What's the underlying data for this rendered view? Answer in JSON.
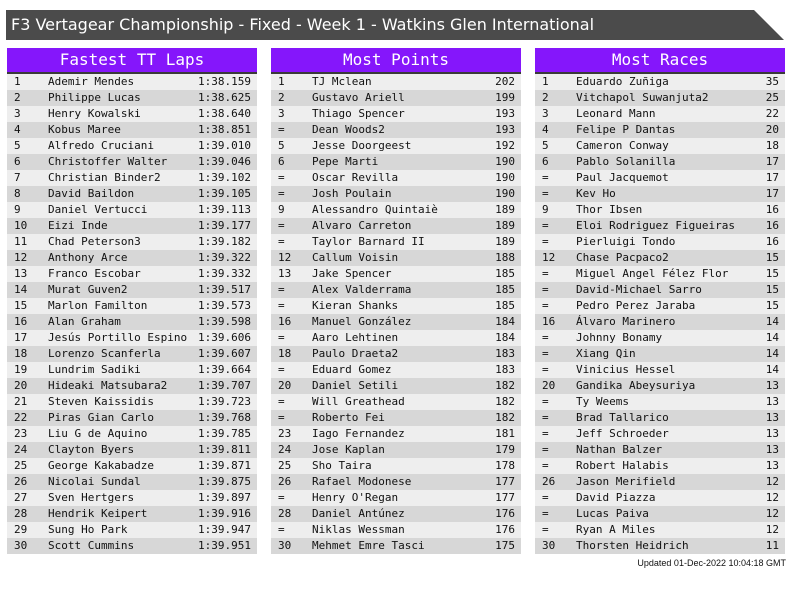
{
  "title": "F3 Vertagear Championship - Fixed - Week 1 - Watkins Glen International",
  "colors": {
    "header": "#8516fb",
    "titlebar": "#4b4b4b",
    "row_light": "#eeeeee",
    "row_dark": "#d7d7d7"
  },
  "panels": [
    {
      "title": "Fastest TT Laps",
      "rows": [
        [
          "1",
          "Ademir Mendes",
          "1:38.159"
        ],
        [
          "2",
          "Philippe Lucas",
          "1:38.625"
        ],
        [
          "3",
          "Henry Kowalski",
          "1:38.640"
        ],
        [
          "4",
          "Kobus Maree",
          "1:38.851"
        ],
        [
          "5",
          "Alfredo Cruciani",
          "1:39.010"
        ],
        [
          "6",
          "Christoffer Walter",
          "1:39.046"
        ],
        [
          "7",
          "Christian Binder2",
          "1:39.102"
        ],
        [
          "8",
          "David Baildon",
          "1:39.105"
        ],
        [
          "9",
          "Daniel Vertucci",
          "1:39.113"
        ],
        [
          "10",
          "Eizi Inde",
          "1:39.177"
        ],
        [
          "11",
          "Chad Peterson3",
          "1:39.182"
        ],
        [
          "12",
          "Anthony Arce",
          "1:39.322"
        ],
        [
          "13",
          "Franco Escobar",
          "1:39.332"
        ],
        [
          "14",
          "Murat Guven2",
          "1:39.517"
        ],
        [
          "15",
          "Marlon Familton",
          "1:39.573"
        ],
        [
          "16",
          "Alan Graham",
          "1:39.598"
        ],
        [
          "17",
          "Jesús Portillo Espino",
          "1:39.606"
        ],
        [
          "18",
          "Lorenzo Scanferla",
          "1:39.607"
        ],
        [
          "19",
          "Lundrim Sadiki",
          "1:39.664"
        ],
        [
          "20",
          "Hideaki Matsubara2",
          "1:39.707"
        ],
        [
          "21",
          "Steven Kaissidis",
          "1:39.723"
        ],
        [
          "22",
          "Piras Gian Carlo",
          "1:39.768"
        ],
        [
          "23",
          "Liu G de Aquino",
          "1:39.785"
        ],
        [
          "24",
          "Clayton Byers",
          "1:39.811"
        ],
        [
          "25",
          "George Kakabadze",
          "1:39.871"
        ],
        [
          "26",
          "Nicolai Sundal",
          "1:39.875"
        ],
        [
          "27",
          "Sven Hertgers",
          "1:39.897"
        ],
        [
          "28",
          "Hendrik Keipert",
          "1:39.916"
        ],
        [
          "29",
          "Sung Ho Park",
          "1:39.947"
        ],
        [
          "30",
          "Scott Cummins",
          "1:39.951"
        ]
      ]
    },
    {
      "title": "Most Points",
      "rows": [
        [
          "1",
          "TJ Mclean",
          "202"
        ],
        [
          "2",
          "Gustavo Ariell",
          "199"
        ],
        [
          "3",
          "Thiago Spencer",
          "193"
        ],
        [
          "=",
          "Dean Woods2",
          "193"
        ],
        [
          "5",
          "Jesse Doorgeest",
          "192"
        ],
        [
          "6",
          "Pepe Marti",
          "190"
        ],
        [
          "=",
          "Oscar Revilla",
          "190"
        ],
        [
          "=",
          "Josh Poulain",
          "190"
        ],
        [
          "9",
          "Alessandro Quintaiè",
          "189"
        ],
        [
          "=",
          "Alvaro Carreton",
          "189"
        ],
        [
          "=",
          "Taylor Barnard II",
          "189"
        ],
        [
          "12",
          "Callum Voisin",
          "188"
        ],
        [
          "13",
          "Jake Spencer",
          "185"
        ],
        [
          "=",
          "Alex Valderrama",
          "185"
        ],
        [
          "=",
          "Kieran Shanks",
          "185"
        ],
        [
          "16",
          "Manuel González",
          "184"
        ],
        [
          "=",
          "Aaro Lehtinen",
          "184"
        ],
        [
          "18",
          "Paulo Draeta2",
          "183"
        ],
        [
          "=",
          "Eduard Gomez",
          "183"
        ],
        [
          "20",
          "Daniel Setili",
          "182"
        ],
        [
          "=",
          "Will Greathead",
          "182"
        ],
        [
          "=",
          "Roberto Fei",
          "182"
        ],
        [
          "23",
          "Iago Fernandez",
          "181"
        ],
        [
          "24",
          "Jose Kaplan",
          "179"
        ],
        [
          "25",
          "Sho Taira",
          "178"
        ],
        [
          "26",
          "Rafael Modonese",
          "177"
        ],
        [
          "=",
          "Henry O'Regan",
          "177"
        ],
        [
          "28",
          "Daniel Antúnez",
          "176"
        ],
        [
          "=",
          "Niklas Wessman",
          "176"
        ],
        [
          "30",
          "Mehmet Emre Tasci",
          "175"
        ]
      ]
    },
    {
      "title": "Most Races",
      "rows": [
        [
          "1",
          "Eduardo Zuñiga",
          "35"
        ],
        [
          "2",
          "Vitchapol Suwanjuta2",
          "25"
        ],
        [
          "3",
          "Leonard Mann",
          "22"
        ],
        [
          "4",
          "Felipe P Dantas",
          "20"
        ],
        [
          "5",
          "Cameron Conway",
          "18"
        ],
        [
          "6",
          "Pablo Solanilla",
          "17"
        ],
        [
          "=",
          "Paul Jacquemot",
          "17"
        ],
        [
          "=",
          "Kev Ho",
          "17"
        ],
        [
          "9",
          "Thor Ibsen",
          "16"
        ],
        [
          "=",
          "Eloi Rodriguez Figueiras",
          "16"
        ],
        [
          "=",
          "Pierluigi Tondo",
          "16"
        ],
        [
          "12",
          "Chase Pacpaco2",
          "15"
        ],
        [
          "=",
          "Miguel Angel Félez Flor",
          "15"
        ],
        [
          "=",
          "David-Michael Sarro",
          "15"
        ],
        [
          "=",
          "Pedro Perez Jaraba",
          "15"
        ],
        [
          "16",
          "Álvaro Marinero",
          "14"
        ],
        [
          "=",
          "Johnny Bonamy",
          "14"
        ],
        [
          "=",
          "Xiang Qin",
          "14"
        ],
        [
          "=",
          "Vinicius Hessel",
          "14"
        ],
        [
          "20",
          "Gandika Abeysuriya",
          "13"
        ],
        [
          "=",
          "Ty Weems",
          "13"
        ],
        [
          "=",
          "Brad Tallarico",
          "13"
        ],
        [
          "=",
          "Jeff Schroeder",
          "13"
        ],
        [
          "=",
          "Nathan Balzer",
          "13"
        ],
        [
          "=",
          "Robert Halabis",
          "13"
        ],
        [
          "26",
          "Jason Merifield",
          "12"
        ],
        [
          "=",
          "David Piazza",
          "12"
        ],
        [
          "=",
          "Lucas Paiva",
          "12"
        ],
        [
          "=",
          "Ryan A Miles",
          "12"
        ],
        [
          "30",
          "Thorsten Heidrich",
          "11"
        ]
      ]
    }
  ],
  "footer": "Updated 01-Dec-2022 10:04:18 GMT"
}
